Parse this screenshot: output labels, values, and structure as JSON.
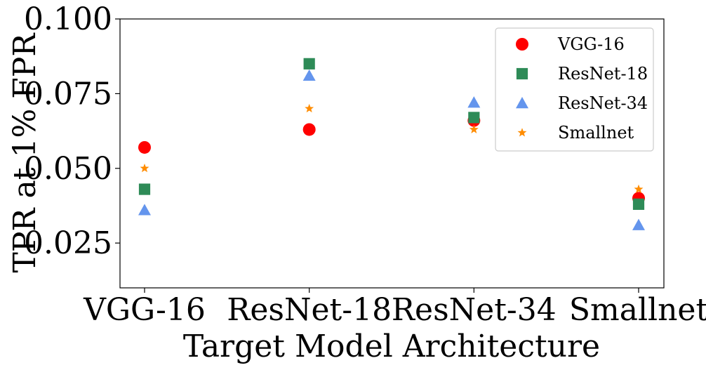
{
  "chart_data": {
    "type": "scatter",
    "title": "",
    "xlabel": "Target Model Architecture",
    "ylabel": "TPR at 1% FPR",
    "categories": [
      "VGG-16",
      "ResNet-18",
      "ResNet-34",
      "Smallnet"
    ],
    "ylim": [
      0.01,
      0.1
    ],
    "yticks": [
      "0.025",
      "0.050",
      "0.075",
      "0.100"
    ],
    "grid": false,
    "legend_position": "top-right",
    "series": [
      {
        "name": "VGG-16",
        "marker": "circle",
        "color": "#ff0000",
        "values": [
          0.057,
          0.063,
          0.066,
          0.04
        ]
      },
      {
        "name": "ResNet-18",
        "marker": "square",
        "color": "#2e8b57",
        "values": [
          0.043,
          0.085,
          0.067,
          0.038
        ]
      },
      {
        "name": "ResNet-34",
        "marker": "triangle",
        "color": "#6495ed",
        "values": [
          0.036,
          0.081,
          0.072,
          0.031
        ]
      },
      {
        "name": "Smallnet",
        "marker": "star",
        "color": "#ff8c00",
        "values": [
          0.05,
          0.07,
          0.063,
          0.043
        ]
      }
    ]
  }
}
